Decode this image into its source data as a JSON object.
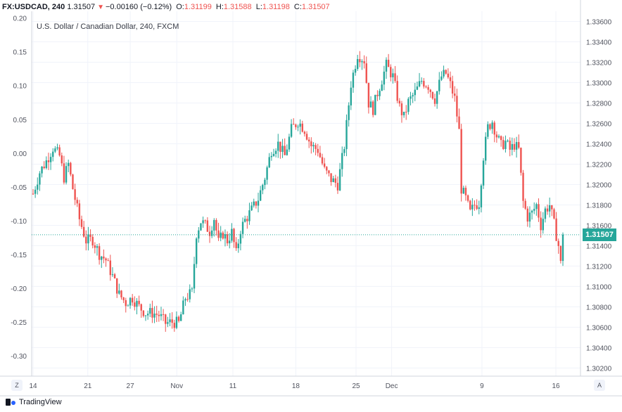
{
  "header": {
    "symbol": "FX:USDCAD, 240",
    "last": "1.31507",
    "change": "−0.00160 (−0.12%)",
    "o_label": "O:",
    "o_value": "1.31199",
    "h_label": "H:",
    "h_value": "1.31588",
    "l_label": "L:",
    "l_value": "1.31198",
    "c_label": "C:",
    "c_value": "1.31507"
  },
  "subtitle": "U.S. Dollar / Canadian Dollar, 240, FXCM",
  "current_price": "1.31507",
  "buttons": {
    "z": "Z",
    "a": "A"
  },
  "branding": "TradingView",
  "colors": {
    "up": "#26a69a",
    "down": "#ef5350",
    "grid": "#f0f3fa",
    "axis": "#d1d4dc",
    "text": "#50535e"
  },
  "chart_data": {
    "type": "candlestick",
    "left_axis": {
      "ticks": [
        "0.20",
        "0.15",
        "0.10",
        "0.05",
        "0.00",
        "-0.05",
        "-0.10",
        "-0.15",
        "-0.20",
        "-0.25",
        "-0.30"
      ],
      "range": [
        -0.33,
        0.21
      ]
    },
    "right_axis": {
      "ticks": [
        "1.33600",
        "1.33400",
        "1.33200",
        "1.33000",
        "1.32800",
        "1.32600",
        "1.32400",
        "1.32200",
        "1.32000",
        "1.31800",
        "1.31600",
        "1.31400",
        "1.31200",
        "1.31000",
        "1.30800",
        "1.30600",
        "1.30400",
        "1.30200"
      ],
      "range": [
        1.3012,
        1.337
      ]
    },
    "x_ticks": [
      "14",
      "21",
      "27",
      "Nov",
      "11",
      "18",
      "25",
      "Dec",
      "9",
      "16"
    ],
    "close_series": [
      {
        "t": 0,
        "p": 1.3191
      },
      {
        "t": 3,
        "p": 1.3212
      },
      {
        "t": 6,
        "p": 1.3223
      },
      {
        "t": 9,
        "p": 1.3236
      },
      {
        "t": 12,
        "p": 1.3228
      },
      {
        "t": 14,
        "p": 1.3207
      },
      {
        "t": 16,
        "p": 1.322
      },
      {
        "t": 18,
        "p": 1.3196
      },
      {
        "t": 21,
        "p": 1.3166
      },
      {
        "t": 24,
        "p": 1.3145
      },
      {
        "t": 27,
        "p": 1.3146
      },
      {
        "t": 30,
        "p": 1.3132
      },
      {
        "t": 33,
        "p": 1.3126
      },
      {
        "t": 36,
        "p": 1.311
      },
      {
        "t": 39,
        "p": 1.3092
      },
      {
        "t": 42,
        "p": 1.3084
      },
      {
        "t": 45,
        "p": 1.3089
      },
      {
        "t": 48,
        "p": 1.308
      },
      {
        "t": 51,
        "p": 1.3074
      },
      {
        "t": 54,
        "p": 1.3074
      },
      {
        "t": 57,
        "p": 1.3072
      },
      {
        "t": 60,
        "p": 1.3064
      },
      {
        "t": 63,
        "p": 1.3065
      },
      {
        "t": 66,
        "p": 1.3064
      },
      {
        "t": 69,
        "p": 1.3089
      },
      {
        "t": 72,
        "p": 1.3094
      },
      {
        "t": 74,
        "p": 1.3152
      },
      {
        "t": 76,
        "p": 1.3164
      },
      {
        "t": 78,
        "p": 1.316
      },
      {
        "t": 80,
        "p": 1.3154
      },
      {
        "t": 82,
        "p": 1.3167
      },
      {
        "t": 84,
        "p": 1.3143
      },
      {
        "t": 86,
        "p": 1.3152
      },
      {
        "t": 88,
        "p": 1.3145
      },
      {
        "t": 90,
        "p": 1.3153
      },
      {
        "t": 92,
        "p": 1.3132
      },
      {
        "t": 94,
        "p": 1.3156
      },
      {
        "t": 96,
        "p": 1.3165
      },
      {
        "t": 99,
        "p": 1.3175
      },
      {
        "t": 102,
        "p": 1.3186
      },
      {
        "t": 105,
        "p": 1.3207
      },
      {
        "t": 108,
        "p": 1.3234
      },
      {
        "t": 111,
        "p": 1.324
      },
      {
        "t": 114,
        "p": 1.3228
      },
      {
        "t": 117,
        "p": 1.3254
      },
      {
        "t": 120,
        "p": 1.3262
      },
      {
        "t": 123,
        "p": 1.3254
      },
      {
        "t": 126,
        "p": 1.3238
      },
      {
        "t": 129,
        "p": 1.3234
      },
      {
        "t": 132,
        "p": 1.3214
      },
      {
        "t": 135,
        "p": 1.3205
      },
      {
        "t": 138,
        "p": 1.32
      },
      {
        "t": 141,
        "p": 1.3238
      },
      {
        "t": 144,
        "p": 1.3299
      },
      {
        "t": 147,
        "p": 1.3328
      },
      {
        "t": 150,
        "p": 1.3322
      },
      {
        "t": 152,
        "p": 1.328
      },
      {
        "t": 154,
        "p": 1.3274
      },
      {
        "t": 156,
        "p": 1.329
      },
      {
        "t": 158,
        "p": 1.3303
      },
      {
        "t": 160,
        "p": 1.3317
      },
      {
        "t": 163,
        "p": 1.3306
      },
      {
        "t": 166,
        "p": 1.3276
      },
      {
        "t": 168,
        "p": 1.3266
      },
      {
        "t": 170,
        "p": 1.3281
      },
      {
        "t": 173,
        "p": 1.329
      },
      {
        "t": 176,
        "p": 1.3302
      },
      {
        "t": 179,
        "p": 1.3297
      },
      {
        "t": 182,
        "p": 1.3284
      },
      {
        "t": 185,
        "p": 1.3306
      },
      {
        "t": 187,
        "p": 1.3309
      },
      {
        "t": 189,
        "p": 1.3298
      },
      {
        "t": 191,
        "p": 1.3284
      },
      {
        "t": 193,
        "p": 1.3252
      },
      {
        "t": 194,
        "p": 1.3196
      },
      {
        "t": 196,
        "p": 1.3186
      },
      {
        "t": 198,
        "p": 1.3172
      },
      {
        "t": 200,
        "p": 1.318
      },
      {
        "t": 202,
        "p": 1.3182
      },
      {
        "t": 204,
        "p": 1.3228
      },
      {
        "t": 206,
        "p": 1.3256
      },
      {
        "t": 208,
        "p": 1.3262
      },
      {
        "t": 210,
        "p": 1.3248
      },
      {
        "t": 212,
        "p": 1.3238
      },
      {
        "t": 214,
        "p": 1.3242
      },
      {
        "t": 216,
        "p": 1.3234
      },
      {
        "t": 218,
        "p": 1.3239
      },
      {
        "t": 220,
        "p": 1.3234
      },
      {
        "t": 222,
        "p": 1.3183
      },
      {
        "t": 224,
        "p": 1.3168
      },
      {
        "t": 226,
        "p": 1.3172
      },
      {
        "t": 228,
        "p": 1.318
      },
      {
        "t": 230,
        "p": 1.316
      },
      {
        "t": 232,
        "p": 1.3175
      },
      {
        "t": 234,
        "p": 1.318
      },
      {
        "t": 236,
        "p": 1.3161
      },
      {
        "t": 238,
        "p": 1.314
      },
      {
        "t": 239,
        "p": 1.3122
      },
      {
        "t": 240,
        "p": 1.31507
      }
    ]
  }
}
